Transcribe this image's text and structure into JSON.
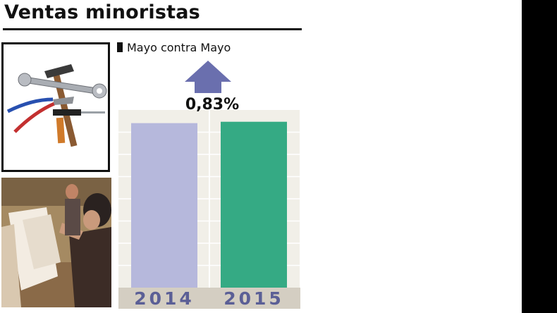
{
  "title": "Ventas minoristas",
  "legend": {
    "label": "Mayo contra Mayo"
  },
  "change": {
    "label": "0,83%",
    "direction": "up"
  },
  "colors": {
    "bar_2014": "#b6b8dc",
    "bar_2015": "#35aa84",
    "arrow": "#6a6fae",
    "axis_band": "#d4cec2",
    "axis_text": "#5b5f96",
    "plot_bg": "#f1efe8",
    "grid": "#ffffff"
  },
  "icons": [
    "tools-photo",
    "shopping-photo",
    "up-arrow-icon"
  ],
  "chart_data": {
    "type": "bar",
    "categories": [
      "2014",
      "2015"
    ],
    "values": [
      100,
      100.83
    ],
    "ylim": [
      0,
      108
    ],
    "grid": true,
    "legend": "top-left",
    "title": "",
    "xlabel": "",
    "ylabel": ""
  }
}
